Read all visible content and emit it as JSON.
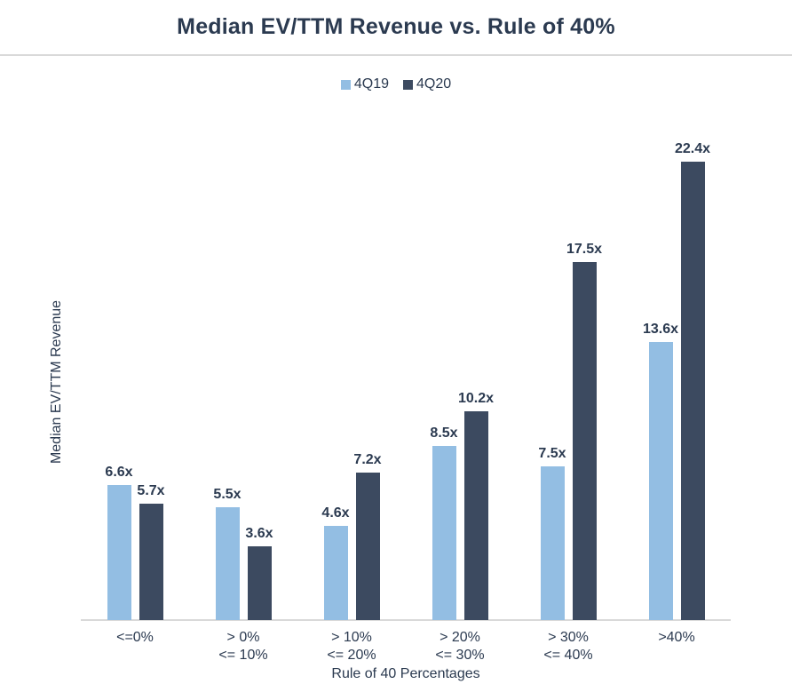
{
  "title": "Median EV/TTM Revenue vs. Rule of 40%",
  "colors": {
    "series_4q19": "#93BEE3",
    "series_4q20": "#3C4A60",
    "text": "#2B3A50",
    "axis_line": "#D9D9D9",
    "background": "#FFFFFF"
  },
  "chart_data": {
    "type": "bar",
    "title": "Median EV/TTM Revenue vs. Rule of 40%",
    "categories": [
      "<=0%",
      "> 0%\n<= 10%",
      "> 10%\n<= 20%",
      "> 20%\n<= 30%",
      "> 30%\n<= 40%",
      ">40%"
    ],
    "series": [
      {
        "name": "4Q19",
        "color": "#93BEE3",
        "values": [
          6.6,
          5.5,
          4.6,
          8.5,
          7.5,
          13.6
        ]
      },
      {
        "name": "4Q20",
        "color": "#3C4A60",
        "values": [
          5.7,
          3.6,
          7.2,
          10.2,
          17.5,
          22.4
        ]
      }
    ],
    "value_suffix": "x",
    "data_labels": true,
    "xlabel": "Rule of 40 Percentages",
    "ylabel": "Median EV/TTM Revenue",
    "ylim": [
      0,
      24.3
    ],
    "grid": false,
    "legend_position": "top"
  }
}
